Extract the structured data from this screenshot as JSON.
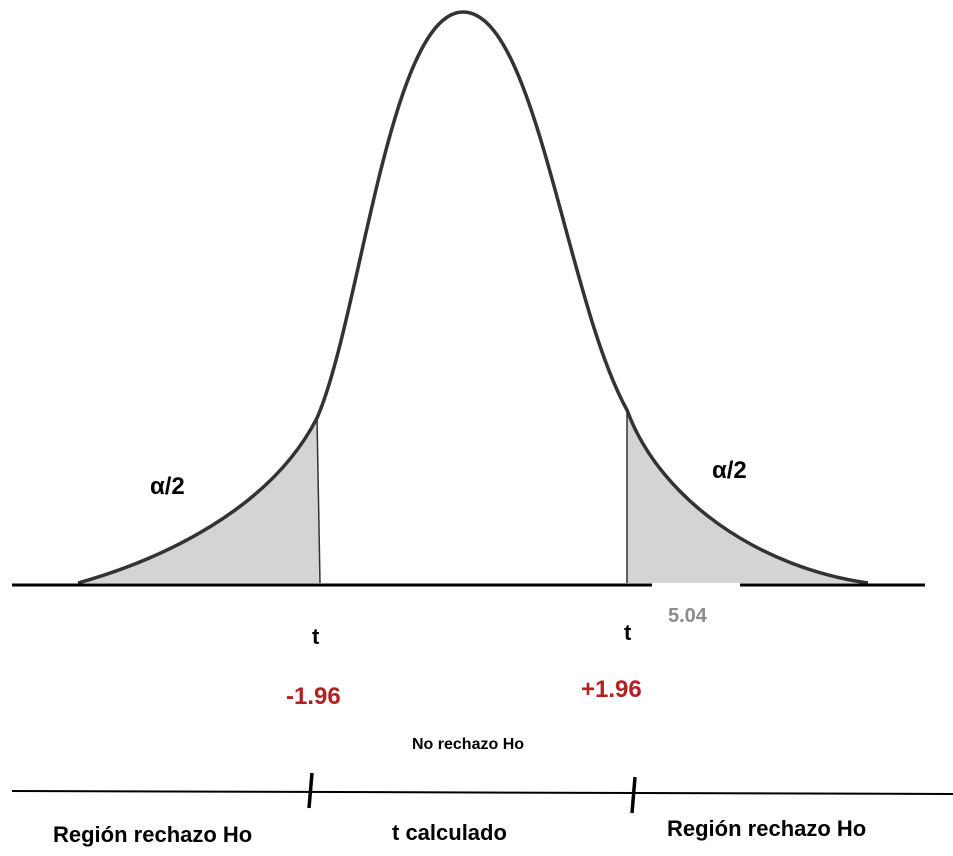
{
  "diagram": {
    "labels": {
      "alpha_left": "α/2",
      "alpha_right": "α/2",
      "t_left": "t",
      "t_right": "t",
      "critical_left": "-1.96",
      "critical_right": "+1.96",
      "t_calculated_value": "5.04",
      "no_reject": "No rechazo Ho",
      "region_left": "Región rechazo Ho",
      "region_center": "t calculado",
      "region_right": "Región rechazo Ho"
    },
    "colors": {
      "curve": "#333333",
      "tail_fill": "#d4d4d4",
      "critical_value": "#b22222",
      "calculated_value": "#8c8c8c",
      "axis": "#000000"
    }
  }
}
